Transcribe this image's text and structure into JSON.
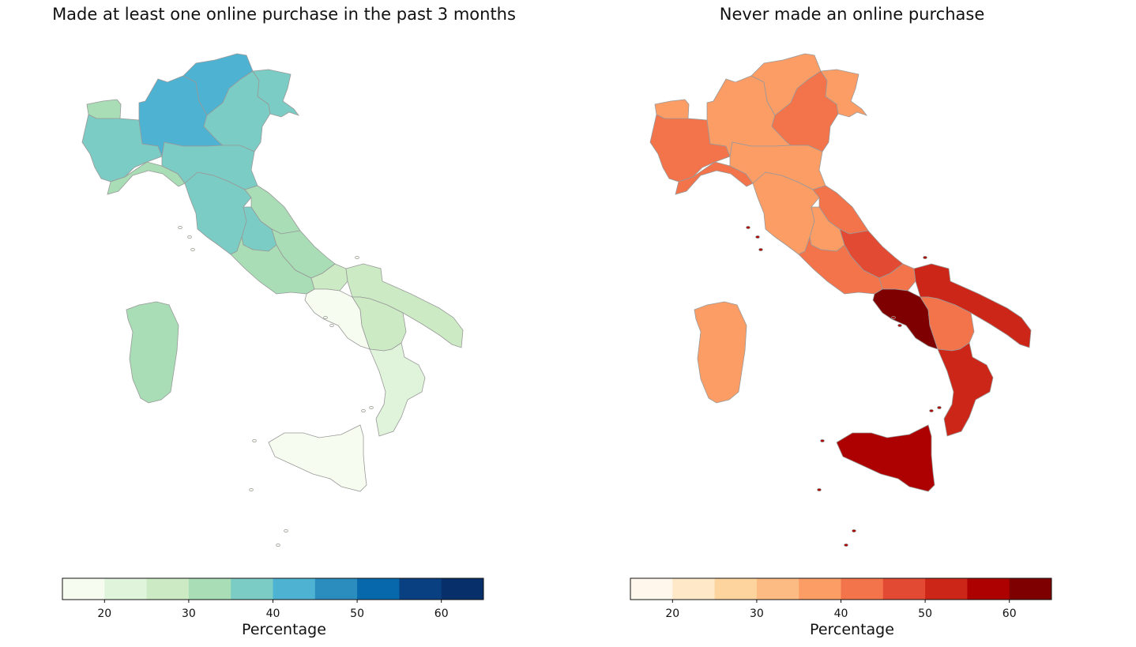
{
  "maps": [
    {
      "id": "left",
      "title": "Made at least one online purchase in the past 3 months",
      "colorbar": {
        "label": "Percentage",
        "range": [
          15,
          65
        ],
        "ticks": [
          "20",
          "30",
          "40",
          "50",
          "60"
        ],
        "colors": [
          "#f7fcf0",
          "#e0f3db",
          "#ccebc5",
          "#a8ddb5",
          "#7bccc4",
          "#4eb3d3",
          "#2b8cbe",
          "#0868ac",
          "#084081",
          "#07306b"
        ]
      },
      "region_values": {
        "Valle d'Aosta": 33,
        "Piemonte": 38,
        "Liguria": 33,
        "Lombardia": 42,
        "Trentino-Alto Adige": 44,
        "Veneto": 38,
        "Friuli-Venezia Giulia": 38,
        "Emilia-Romagna": 38,
        "Toscana": 38,
        "Umbria": 37,
        "Marche": 34,
        "Lazio": 34,
        "Abruzzo": 33,
        "Molise": 26,
        "Campania": 19,
        "Puglia": 27,
        "Basilicata": 26,
        "Calabria": 23,
        "Sicilia": 18,
        "Sardegna": 34
      }
    },
    {
      "id": "right",
      "title": "Never made an online purchase",
      "colorbar": {
        "label": "Percentage",
        "range": [
          15,
          65
        ],
        "ticks": [
          "20",
          "30",
          "40",
          "50",
          "60"
        ],
        "colors": [
          "#fff7ec",
          "#fee8c8",
          "#fdd49e",
          "#fdbb84",
          "#fc9d66",
          "#f3734b",
          "#e34a33",
          "#cc2618",
          "#ad0000",
          "#7f0000"
        ]
      },
      "region_values": {
        "Valle d'Aosta": 37,
        "Piemonte": 42,
        "Liguria": 41,
        "Lombardia": 37,
        "Trentino-Alto Adige": 36,
        "Veneto": 42,
        "Friuli-Venezia Giulia": 37,
        "Emilia-Romagna": 37,
        "Toscana": 38,
        "Umbria": 39,
        "Marche": 43,
        "Lazio": 44,
        "Abruzzo": 48,
        "Molise": 44,
        "Campania": 63,
        "Puglia": 53,
        "Basilicata": 43,
        "Calabria": 53,
        "Sicilia": 57,
        "Sardegna": 37
      }
    }
  ]
}
